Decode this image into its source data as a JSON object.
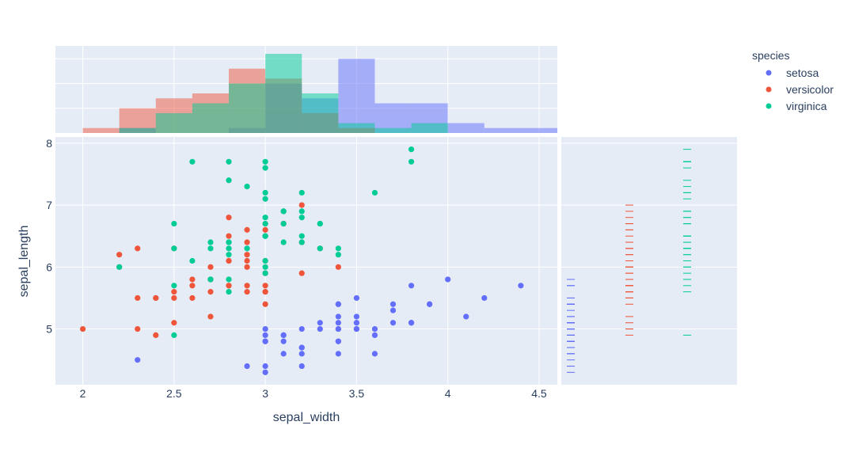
{
  "chart_data": {
    "type": "scatter",
    "x_label": "sepal_width",
    "y_label": "sepal_length",
    "x_ticks": [
      "2",
      "2.5",
      "3",
      "3.5",
      "4",
      "4.5"
    ],
    "y_ticks": [
      "5",
      "6",
      "7",
      "8"
    ],
    "xlim": [
      1.85,
      4.6
    ],
    "ylim": [
      4.1,
      8.1
    ],
    "legend_title": "species",
    "series": [
      {
        "name": "setosa",
        "color": "#636efa",
        "points": [
          [
            3.5,
            5.1
          ],
          [
            3.0,
            4.9
          ],
          [
            3.2,
            4.7
          ],
          [
            3.1,
            4.6
          ],
          [
            3.6,
            5.0
          ],
          [
            3.9,
            5.4
          ],
          [
            3.4,
            4.6
          ],
          [
            3.4,
            5.0
          ],
          [
            2.9,
            4.4
          ],
          [
            3.1,
            4.9
          ],
          [
            3.7,
            5.4
          ],
          [
            3.4,
            4.8
          ],
          [
            3.0,
            4.8
          ],
          [
            3.0,
            4.3
          ],
          [
            4.0,
            5.8
          ],
          [
            4.4,
            5.7
          ],
          [
            3.9,
            5.4
          ],
          [
            3.5,
            5.1
          ],
          [
            3.8,
            5.7
          ],
          [
            3.8,
            5.1
          ],
          [
            3.4,
            5.4
          ],
          [
            3.7,
            5.1
          ],
          [
            3.6,
            4.6
          ],
          [
            3.3,
            5.1
          ],
          [
            3.4,
            4.8
          ],
          [
            3.0,
            5.0
          ],
          [
            3.4,
            5.0
          ],
          [
            3.5,
            5.2
          ],
          [
            3.4,
            5.2
          ],
          [
            3.2,
            4.7
          ],
          [
            3.1,
            4.8
          ],
          [
            3.4,
            5.4
          ],
          [
            4.1,
            5.2
          ],
          [
            4.2,
            5.5
          ],
          [
            3.1,
            4.9
          ],
          [
            3.2,
            5.0
          ],
          [
            3.5,
            5.5
          ],
          [
            3.6,
            4.9
          ],
          [
            3.0,
            4.4
          ],
          [
            3.4,
            5.1
          ],
          [
            3.5,
            5.0
          ],
          [
            2.3,
            4.5
          ],
          [
            3.2,
            4.4
          ],
          [
            3.5,
            5.0
          ],
          [
            3.8,
            5.1
          ],
          [
            3.0,
            4.8
          ],
          [
            3.8,
            5.1
          ],
          [
            3.2,
            4.6
          ],
          [
            3.7,
            5.3
          ],
          [
            3.3,
            5.0
          ]
        ]
      },
      {
        "name": "versicolor",
        "color": "#ef553b",
        "points": [
          [
            3.2,
            7.0
          ],
          [
            3.2,
            6.4
          ],
          [
            3.1,
            6.9
          ],
          [
            2.3,
            5.5
          ],
          [
            2.8,
            6.5
          ],
          [
            2.8,
            5.7
          ],
          [
            3.3,
            6.3
          ],
          [
            2.4,
            4.9
          ],
          [
            2.9,
            6.6
          ],
          [
            2.7,
            5.2
          ],
          [
            2.0,
            5.0
          ],
          [
            3.0,
            5.9
          ],
          [
            2.2,
            6.0
          ],
          [
            2.9,
            6.1
          ],
          [
            2.9,
            5.6
          ],
          [
            3.1,
            6.7
          ],
          [
            3.0,
            5.6
          ],
          [
            2.7,
            5.8
          ],
          [
            2.2,
            6.2
          ],
          [
            2.5,
            5.6
          ],
          [
            3.2,
            5.9
          ],
          [
            2.8,
            6.1
          ],
          [
            2.5,
            6.3
          ],
          [
            2.8,
            6.1
          ],
          [
            2.9,
            6.4
          ],
          [
            3.0,
            6.6
          ],
          [
            2.8,
            6.8
          ],
          [
            3.0,
            6.7
          ],
          [
            2.9,
            6.0
          ],
          [
            2.6,
            5.7
          ],
          [
            2.4,
            5.5
          ],
          [
            2.4,
            5.5
          ],
          [
            2.7,
            5.8
          ],
          [
            2.7,
            6.0
          ],
          [
            3.0,
            5.4
          ],
          [
            3.4,
            6.0
          ],
          [
            3.1,
            6.7
          ],
          [
            2.3,
            6.3
          ],
          [
            3.0,
            5.6
          ],
          [
            2.5,
            5.5
          ],
          [
            2.6,
            5.5
          ],
          [
            3.0,
            6.1
          ],
          [
            2.6,
            5.8
          ],
          [
            2.3,
            5.0
          ],
          [
            2.7,
            5.6
          ],
          [
            3.0,
            5.7
          ],
          [
            2.9,
            5.7
          ],
          [
            2.9,
            6.2
          ],
          [
            2.5,
            5.1
          ],
          [
            2.8,
            5.7
          ]
        ]
      },
      {
        "name": "virginica",
        "color": "#00cc96",
        "points": [
          [
            3.3,
            6.3
          ],
          [
            2.7,
            5.8
          ],
          [
            3.0,
            7.1
          ],
          [
            2.9,
            6.3
          ],
          [
            3.0,
            6.5
          ],
          [
            3.0,
            7.6
          ],
          [
            2.5,
            4.9
          ],
          [
            2.9,
            7.3
          ],
          [
            2.5,
            6.7
          ],
          [
            3.6,
            7.2
          ],
          [
            3.2,
            6.5
          ],
          [
            2.7,
            6.4
          ],
          [
            3.0,
            6.8
          ],
          [
            2.5,
            5.7
          ],
          [
            2.8,
            5.8
          ],
          [
            3.2,
            6.4
          ],
          [
            3.0,
            6.5
          ],
          [
            3.8,
            7.7
          ],
          [
            2.6,
            7.7
          ],
          [
            2.2,
            6.0
          ],
          [
            3.2,
            6.9
          ],
          [
            2.8,
            5.6
          ],
          [
            2.8,
            7.7
          ],
          [
            2.7,
            6.3
          ],
          [
            3.3,
            6.7
          ],
          [
            3.2,
            7.2
          ],
          [
            2.8,
            6.2
          ],
          [
            3.0,
            6.1
          ],
          [
            2.8,
            6.4
          ],
          [
            3.0,
            7.2
          ],
          [
            2.8,
            7.4
          ],
          [
            3.8,
            7.9
          ],
          [
            2.8,
            6.4
          ],
          [
            2.8,
            6.3
          ],
          [
            2.6,
            6.1
          ],
          [
            3.0,
            7.7
          ],
          [
            3.4,
            6.3
          ],
          [
            3.1,
            6.4
          ],
          [
            3.0,
            6.0
          ],
          [
            3.1,
            6.9
          ],
          [
            3.1,
            6.7
          ],
          [
            3.1,
            6.9
          ],
          [
            2.7,
            5.8
          ],
          [
            3.2,
            6.8
          ],
          [
            3.3,
            6.7
          ],
          [
            3.0,
            6.7
          ],
          [
            2.5,
            6.3
          ],
          [
            3.0,
            6.5
          ],
          [
            3.4,
            6.2
          ],
          [
            3.0,
            5.9
          ]
        ]
      }
    ],
    "marginal_x": "histogram",
    "marginal_y": "rug"
  }
}
